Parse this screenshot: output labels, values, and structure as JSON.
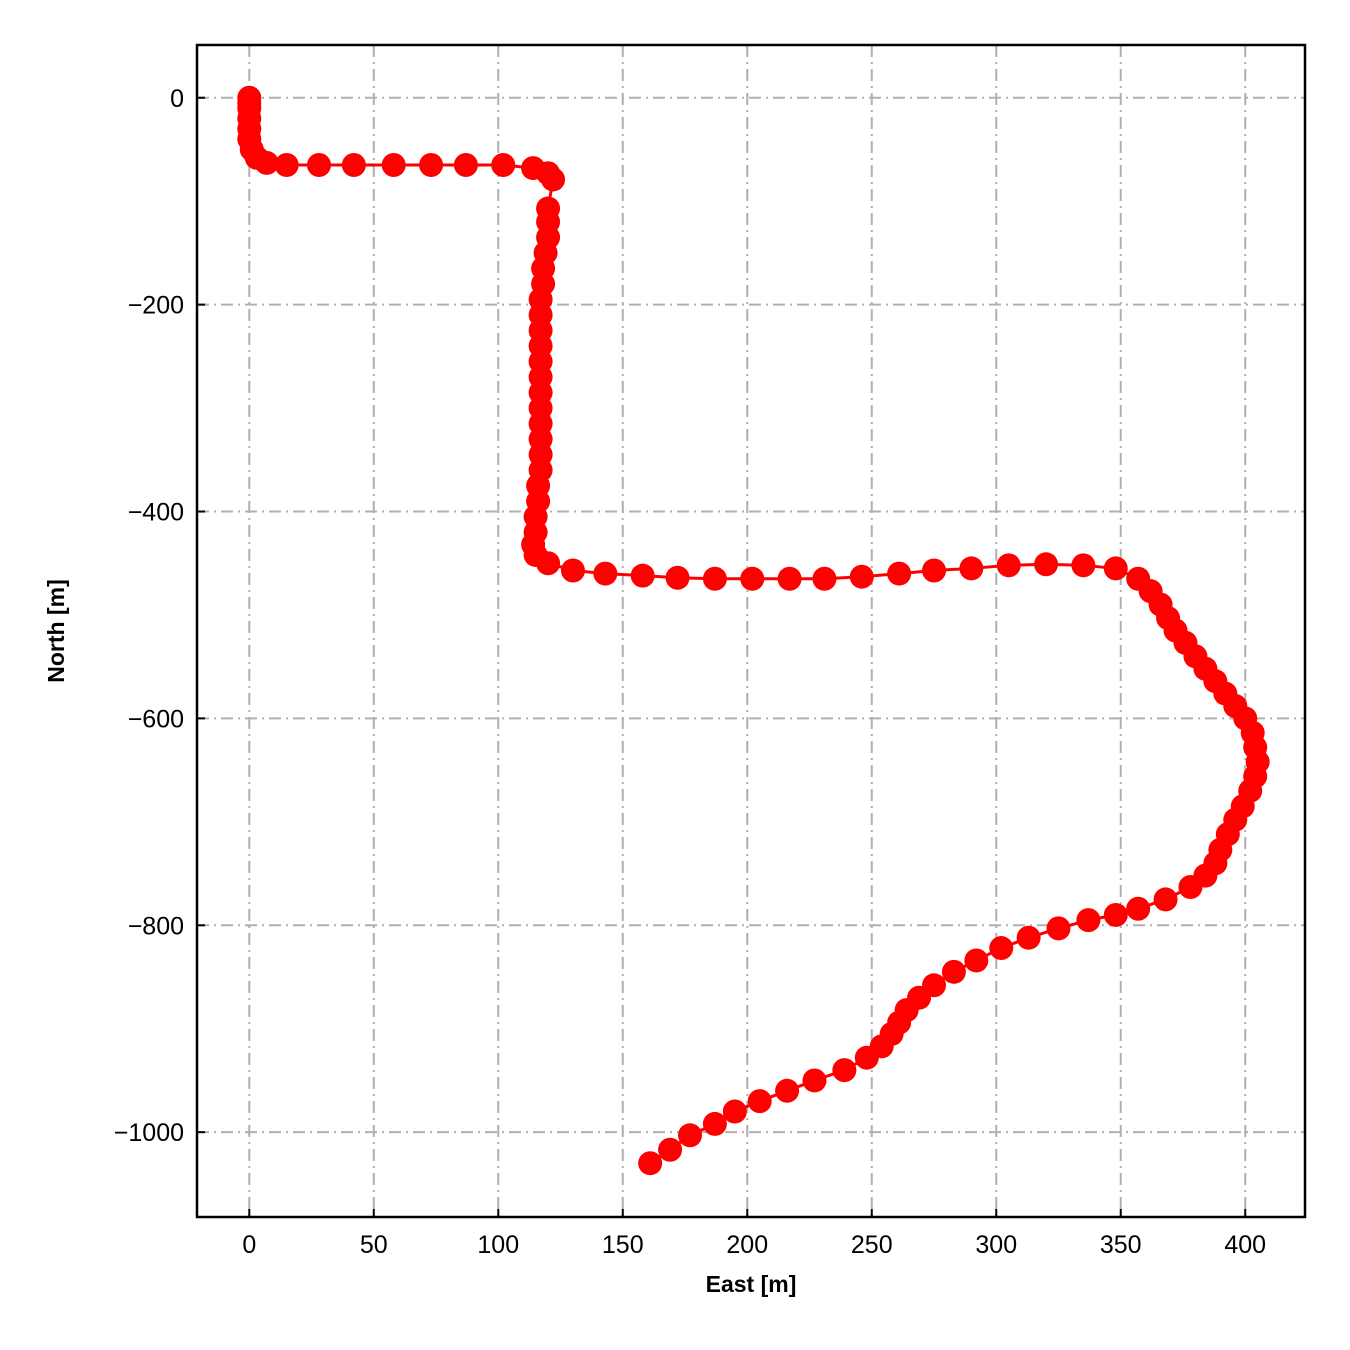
{
  "chart_data": {
    "type": "line",
    "xlabel": "East [m]",
    "ylabel": "North [m]",
    "xlim": [
      -21,
      424
    ],
    "ylim": [
      -1082,
      51
    ],
    "xticks": [
      0,
      50,
      100,
      150,
      200,
      250,
      300,
      350,
      400
    ],
    "yticks": [
      0,
      {
        "value": -200,
        "label": "−200"
      },
      {
        "value": -400,
        "label": "−400"
      },
      {
        "value": -600,
        "label": "−600"
      },
      {
        "value": -800,
        "label": "−800"
      },
      {
        "value": -1000,
        "label": "−1000"
      }
    ],
    "grid": true,
    "x": [
      0,
      0,
      0,
      0,
      0,
      0,
      1,
      3,
      7,
      15,
      28,
      42,
      58,
      73,
      87,
      102,
      114,
      120,
      122,
      120,
      120,
      120,
      119,
      118,
      118,
      117,
      117,
      117,
      117,
      117,
      117,
      117,
      117,
      117,
      117,
      117,
      117,
      116,
      116,
      115,
      115,
      114,
      115,
      120,
      130,
      143,
      158,
      172,
      187,
      202,
      217,
      231,
      246,
      261,
      275,
      290,
      305,
      320,
      335,
      348,
      357,
      362,
      366,
      369,
      372,
      376,
      380,
      384,
      388,
      392,
      396,
      400,
      403,
      404,
      405,
      404,
      402,
      399,
      396,
      393,
      390,
      388,
      384,
      378,
      368,
      357,
      348,
      337,
      325,
      313,
      302,
      292,
      283,
      275,
      269,
      264,
      261,
      258,
      254,
      248,
      239,
      227,
      216,
      205,
      195,
      187,
      177,
      169,
      161
    ],
    "series": [
      {
        "color": "#ff0000",
        "values": [
          0,
          -5,
          -10,
          -20,
          -30,
          -40,
          -50,
          -58,
          -63,
          -65,
          -65,
          -65,
          -65,
          -65,
          -65,
          -65,
          -68,
          -73,
          -79,
          -107,
          -120,
          -135,
          -150,
          -165,
          -180,
          -195,
          -210,
          -225,
          -240,
          -255,
          -270,
          -285,
          -300,
          -315,
          -330,
          -345,
          -360,
          -375,
          -390,
          -405,
          -420,
          -432,
          -442,
          -450,
          -457,
          -460,
          -462,
          -464,
          -465,
          -465,
          -465,
          -465,
          -463,
          -460,
          -457,
          -455,
          -452,
          -451,
          -452,
          -455,
          -465,
          -477,
          -490,
          -503,
          -515,
          -527,
          -540,
          -552,
          -564,
          -576,
          -588,
          -600,
          -614,
          -628,
          -642,
          -656,
          -670,
          -685,
          -698,
          -712,
          -727,
          -740,
          -752,
          -763,
          -775,
          -784,
          -790,
          -795,
          -803,
          -812,
          -822,
          -834,
          -845,
          -858,
          -870,
          -882,
          -894,
          -905,
          -917,
          -928,
          -940,
          -950,
          -960,
          -970,
          -980,
          -992,
          -1003,
          -1017,
          -1030
        ]
      }
    ]
  }
}
